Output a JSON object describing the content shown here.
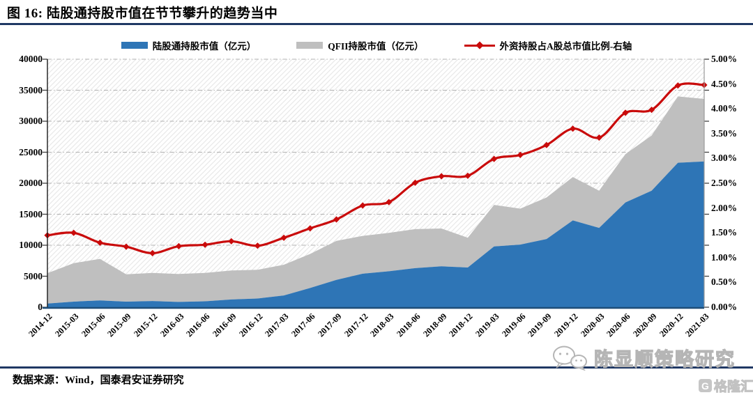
{
  "header": {
    "title": "图 16: 陆股通持股市值在节节攀升的趋势当中"
  },
  "legend": [
    {
      "label": "陆股通持股市值（亿元）",
      "color": "#2E75B6",
      "type": "area"
    },
    {
      "label": "QFII持股市值（亿元）",
      "color": "#BFBFBF",
      "type": "area"
    },
    {
      "label": "外资持股占A股总市值比例-右轴",
      "color": "#C90B0B",
      "type": "line-marker"
    }
  ],
  "chart_data": {
    "type": "area",
    "title": "陆股通持股市值在节节攀升的趋势当中",
    "categories": [
      "2014-12",
      "2015-03",
      "2015-06",
      "2015-09",
      "2015-12",
      "2016-03",
      "2016-06",
      "2016-09",
      "2016-12",
      "2017-03",
      "2017-06",
      "2017-09",
      "2017-12",
      "2018-03",
      "2018-06",
      "2018-09",
      "2018-12",
      "2019-03",
      "2019-06",
      "2019-09",
      "2019-12",
      "2020-03",
      "2020-06",
      "2020-09",
      "2020-12",
      "2021-03"
    ],
    "series": [
      {
        "name": "陆股通持股市值（亿元）",
        "render": "stacked-area",
        "axis": "left",
        "color": "#2E75B6",
        "values": [
          580,
          900,
          1100,
          900,
          1000,
          850,
          950,
          1250,
          1400,
          1900,
          3100,
          4400,
          5400,
          5800,
          6300,
          6600,
          6400,
          9800,
          10100,
          11000,
          14000,
          12800,
          16900,
          18800,
          23300,
          23500
        ]
      },
      {
        "name": "QFII持股市值（亿元）",
        "render": "stacked-area",
        "axis": "left",
        "color": "#BFBFBF",
        "values": [
          4920,
          6200,
          6700,
          4400,
          4540,
          4510,
          4590,
          4670,
          4630,
          4950,
          5500,
          6300,
          6100,
          6200,
          6300,
          6100,
          4800,
          6700,
          5800,
          6700,
          7000,
          6000,
          7800,
          8900,
          10700,
          10100
        ]
      },
      {
        "name": "外资持股占A股总市值比例-右轴",
        "render": "line",
        "axis": "right",
        "color": "#C90B0B",
        "values": [
          1.45,
          1.5,
          1.3,
          1.22,
          1.09,
          1.23,
          1.26,
          1.33,
          1.24,
          1.4,
          1.59,
          1.77,
          2.05,
          2.12,
          2.51,
          2.64,
          2.65,
          2.99,
          3.07,
          3.27,
          3.6,
          3.42,
          3.92,
          3.98,
          4.47,
          4.48
        ]
      }
    ],
    "left_axis": {
      "min": 0,
      "max": 40000,
      "step": 5000,
      "tick_labels": [
        "0",
        "5000",
        "10000",
        "15000",
        "20000",
        "25000",
        "30000",
        "35000",
        "40000"
      ]
    },
    "right_axis": {
      "min": 0,
      "max": 5,
      "step": 0.5,
      "tick_labels": [
        "0.00%",
        "0.50%",
        "1.00%",
        "1.50%",
        "2.00%",
        "2.50%",
        "3.00%",
        "3.50%",
        "4.00%",
        "4.50%",
        "5.00%"
      ]
    },
    "grid": "horizontal dash-dot",
    "plot_background": "diagonal-hatch",
    "legend_position": "top-center"
  },
  "footer": {
    "source": "数据来源：Wind，国泰君安证券研究"
  },
  "watermarks": {
    "wechat_name": "陈显顺策略研究",
    "site_logo": "格隆汇"
  },
  "colors": {
    "rule": "#1F3864",
    "bottom_axis": "#1F4E79",
    "gridline": "#b0b0b0",
    "hatch": "#e9e9e9",
    "blue": "#2E75B6",
    "gray": "#BFBFBF",
    "red": "#C90B0B"
  }
}
